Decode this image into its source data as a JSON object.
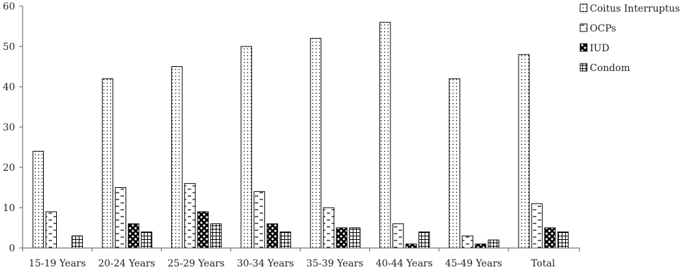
{
  "chart_data": {
    "type": "bar",
    "title": "",
    "xlabel": "",
    "ylabel": "",
    "ylim": [
      0,
      60
    ],
    "yticks": [
      0,
      10,
      20,
      30,
      40,
      50,
      60
    ],
    "grid": false,
    "legend_position": "top-right",
    "categories": [
      "15-19 Years",
      "20-24 Years",
      "25-29 Years",
      "30-34 Years",
      "35-39 Years",
      "40-44 Years",
      "45-49 Years",
      "Total"
    ],
    "series": [
      {
        "name": "Coitus Interruptus",
        "pattern": "dots",
        "values": [
          24,
          42,
          45,
          50,
          52,
          56,
          42,
          48
        ]
      },
      {
        "name": "OCPs",
        "pattern": "dashes",
        "values": [
          9,
          15,
          16,
          14,
          10,
          6,
          3,
          11
        ]
      },
      {
        "name": "IUD",
        "pattern": "checks",
        "values": [
          0,
          6,
          9,
          6,
          5,
          1,
          1,
          5
        ]
      },
      {
        "name": "Condom",
        "pattern": "grid",
        "values": [
          3,
          4,
          6,
          4,
          5,
          4,
          2,
          4
        ]
      }
    ]
  },
  "colors": {
    "axis": "#555555",
    "bar_stroke": "#000000",
    "background": "#ffffff"
  }
}
